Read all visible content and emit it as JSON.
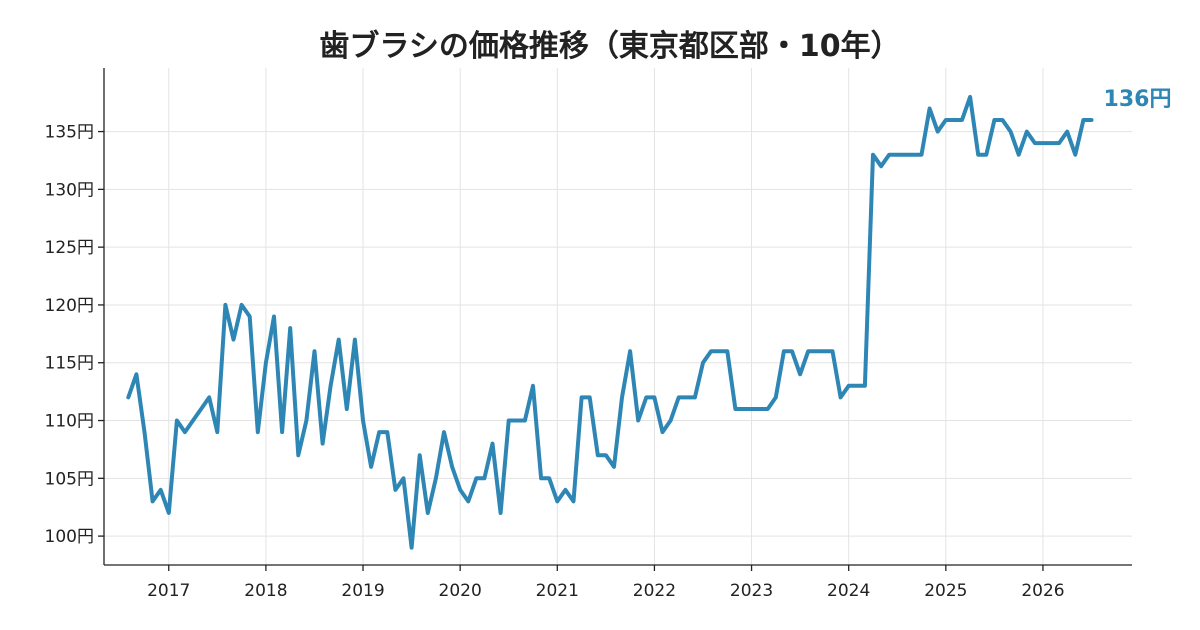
{
  "chart_data": {
    "type": "line",
    "title": "歯ブラシの価格推移（東京都区部・10年）",
    "xlabel": "",
    "ylabel": "",
    "y_unit": "円",
    "xlim": [
      "2016-05",
      "2026-12"
    ],
    "ylim": [
      97.5,
      140.5
    ],
    "x_ticks": [
      "2017",
      "2018",
      "2019",
      "2020",
      "2021",
      "2022",
      "2023",
      "2024",
      "2025",
      "2026"
    ],
    "y_ticks": [
      "100円",
      "105円",
      "110円",
      "115円",
      "120円",
      "125円",
      "130円",
      "135円"
    ],
    "grid": true,
    "legend": "none",
    "series": [
      {
        "color": "#2e86b5",
        "end_label": "136円",
        "points": [
          [
            "2016-08",
            112
          ],
          [
            "2016-09",
            114
          ],
          [
            "2016-10",
            109
          ],
          [
            "2016-11",
            103
          ],
          [
            "2016-12",
            104
          ],
          [
            "2017-01",
            102
          ],
          [
            "2017-02",
            110
          ],
          [
            "2017-03",
            109
          ],
          [
            "2017-04",
            110
          ],
          [
            "2017-05",
            111
          ],
          [
            "2017-06",
            112
          ],
          [
            "2017-07",
            109
          ],
          [
            "2017-08",
            120
          ],
          [
            "2017-09",
            117
          ],
          [
            "2017-10",
            120
          ],
          [
            "2017-11",
            119
          ],
          [
            "2017-12",
            109
          ],
          [
            "2018-01",
            115
          ],
          [
            "2018-02",
            119
          ],
          [
            "2018-03",
            109
          ],
          [
            "2018-04",
            118
          ],
          [
            "2018-05",
            107
          ],
          [
            "2018-06",
            110
          ],
          [
            "2018-07",
            116
          ],
          [
            "2018-08",
            108
          ],
          [
            "2018-09",
            113
          ],
          [
            "2018-10",
            117
          ],
          [
            "2018-11",
            111
          ],
          [
            "2018-12",
            117
          ],
          [
            "2019-01",
            110
          ],
          [
            "2019-02",
            106
          ],
          [
            "2019-03",
            109
          ],
          [
            "2019-04",
            109
          ],
          [
            "2019-05",
            104
          ],
          [
            "2019-06",
            105
          ],
          [
            "2019-07",
            99
          ],
          [
            "2019-08",
            107
          ],
          [
            "2019-09",
            102
          ],
          [
            "2019-10",
            105
          ],
          [
            "2019-11",
            109
          ],
          [
            "2019-12",
            106
          ],
          [
            "2020-01",
            104
          ],
          [
            "2020-02",
            103
          ],
          [
            "2020-03",
            105
          ],
          [
            "2020-04",
            105
          ],
          [
            "2020-05",
            108
          ],
          [
            "2020-06",
            102
          ],
          [
            "2020-07",
            110
          ],
          [
            "2020-08",
            110
          ],
          [
            "2020-09",
            110
          ],
          [
            "2020-10",
            113
          ],
          [
            "2020-11",
            105
          ],
          [
            "2020-12",
            105
          ],
          [
            "2021-01",
            103
          ],
          [
            "2021-02",
            104
          ],
          [
            "2021-03",
            103
          ],
          [
            "2021-04",
            112
          ],
          [
            "2021-05",
            112
          ],
          [
            "2021-06",
            107
          ],
          [
            "2021-07",
            107
          ],
          [
            "2021-08",
            106
          ],
          [
            "2021-09",
            112
          ],
          [
            "2021-10",
            116
          ],
          [
            "2021-11",
            110
          ],
          [
            "2021-12",
            112
          ],
          [
            "2022-01",
            112
          ],
          [
            "2022-02",
            109
          ],
          [
            "2022-03",
            110
          ],
          [
            "2022-04",
            112
          ],
          [
            "2022-05",
            112
          ],
          [
            "2022-06",
            112
          ],
          [
            "2022-07",
            115
          ],
          [
            "2022-08",
            116
          ],
          [
            "2022-09",
            116
          ],
          [
            "2022-10",
            116
          ],
          [
            "2022-11",
            111
          ],
          [
            "2022-12",
            111
          ],
          [
            "2023-01",
            111
          ],
          [
            "2023-02",
            111
          ],
          [
            "2023-03",
            111
          ],
          [
            "2023-04",
            112
          ],
          [
            "2023-05",
            116
          ],
          [
            "2023-06",
            116
          ],
          [
            "2023-07",
            114
          ],
          [
            "2023-08",
            116
          ],
          [
            "2023-09",
            116
          ],
          [
            "2023-10",
            116
          ],
          [
            "2023-11",
            116
          ],
          [
            "2023-12",
            112
          ],
          [
            "2024-01",
            113
          ],
          [
            "2024-02",
            113
          ],
          [
            "2024-03",
            113
          ],
          [
            "2024-04",
            133
          ],
          [
            "2024-05",
            132
          ],
          [
            "2024-06",
            133
          ],
          [
            "2024-07",
            133
          ],
          [
            "2024-08",
            133
          ],
          [
            "2024-09",
            133
          ],
          [
            "2024-10",
            133
          ],
          [
            "2024-11",
            137
          ],
          [
            "2024-12",
            135
          ],
          [
            "2025-01",
            136
          ],
          [
            "2025-02",
            136
          ],
          [
            "2025-03",
            136
          ],
          [
            "2025-04",
            138
          ],
          [
            "2025-05",
            133
          ],
          [
            "2025-06",
            133
          ],
          [
            "2025-07",
            136
          ],
          [
            "2025-08",
            136
          ],
          [
            "2025-09",
            135
          ],
          [
            "2025-10",
            133
          ],
          [
            "2025-11",
            135
          ],
          [
            "2025-12",
            134
          ],
          [
            "2026-01",
            134
          ],
          [
            "2026-02",
            134
          ],
          [
            "2026-03",
            134
          ],
          [
            "2026-04",
            135
          ],
          [
            "2026-05",
            133
          ],
          [
            "2026-06",
            136
          ],
          [
            "2026-07",
            136
          ]
        ]
      }
    ]
  }
}
